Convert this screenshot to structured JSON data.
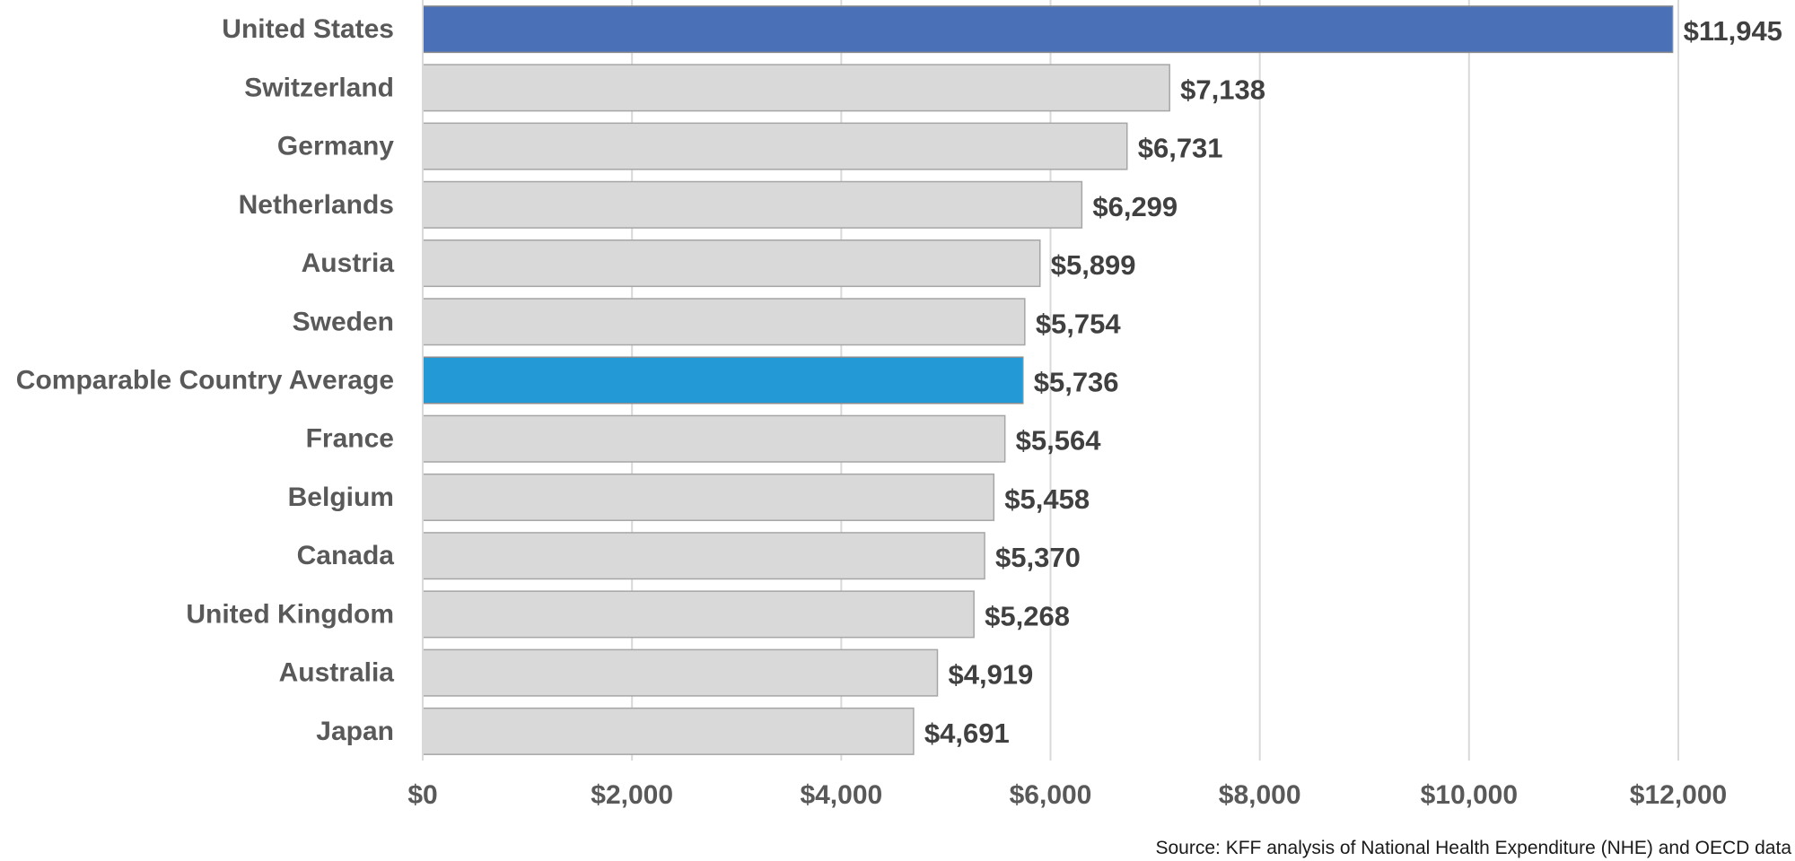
{
  "chart_data": {
    "type": "bar",
    "orientation": "horizontal",
    "categories": [
      "United States",
      "Switzerland",
      "Germany",
      "Netherlands",
      "Austria",
      "Sweden",
      "Comparable Country Average",
      "France",
      "Belgium",
      "Canada",
      "United Kingdom",
      "Australia",
      "Japan"
    ],
    "values": [
      11945,
      7138,
      6731,
      6299,
      5899,
      5754,
      5736,
      5564,
      5458,
      5370,
      5268,
      4919,
      4691
    ],
    "value_labels": [
      "$11,945",
      "$7,138",
      "$6,731",
      "$6,299",
      "$5,899",
      "$5,754",
      "$5,736",
      "$5,564",
      "$5,458",
      "$5,370",
      "$5,268",
      "$4,919",
      "$4,691"
    ],
    "highlight_colors": {
      "United States": "#4a70b7",
      "Comparable Country Average": "#239ad6"
    },
    "default_color": "#d9d9d9",
    "bar_border_color": "#a6a6a6",
    "xlim": [
      0,
      12000
    ],
    "x_ticks": [
      0,
      2000,
      4000,
      6000,
      8000,
      10000,
      12000
    ],
    "x_tick_labels": [
      "$0",
      "$2,000",
      "$4,000",
      "$6,000",
      "$8,000",
      "$10,000",
      "$12,000"
    ],
    "grid": "vertical",
    "grid_color": "#d9d9d9",
    "title": "",
    "xlabel": "",
    "ylabel": ""
  },
  "source": "Source:  KFF analysis of National Health Expenditure (NHE) and OECD data"
}
